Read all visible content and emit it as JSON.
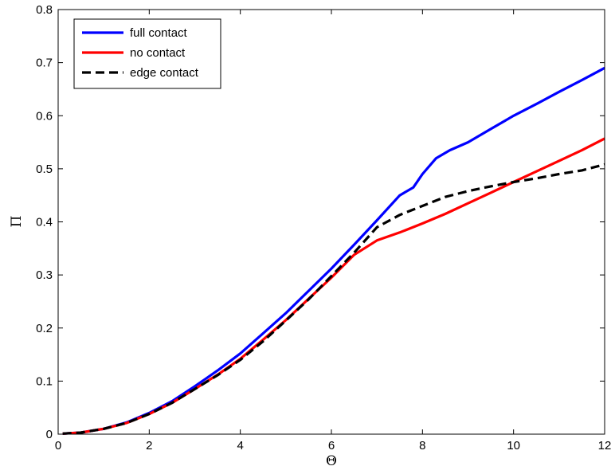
{
  "chart_data": {
    "type": "line",
    "title": "",
    "xlabel": "Θ",
    "ylabel": "Π",
    "xlim": [
      0,
      12
    ],
    "ylim": [
      0,
      0.8
    ],
    "xticks": [
      0,
      2,
      4,
      6,
      8,
      10,
      12
    ],
    "yticks": [
      0,
      0.1,
      0.2,
      0.3,
      0.4,
      0.5,
      0.6,
      0.7,
      0.8
    ],
    "grid": false,
    "legend_position": "top-left",
    "series": [
      {
        "name": "full contact",
        "color": "#0000ff",
        "dash": "solid",
        "x": [
          0.1,
          0.5,
          1.0,
          1.5,
          2.0,
          2.5,
          3.0,
          3.5,
          4.0,
          4.5,
          5.0,
          5.5,
          6.0,
          6.5,
          7.0,
          7.5,
          7.8,
          8.0,
          8.3,
          8.6,
          9.0,
          9.5,
          10.0,
          10.5,
          11.0,
          11.5,
          12.0
        ],
        "y": [
          0.001,
          0.003,
          0.01,
          0.022,
          0.04,
          0.062,
          0.09,
          0.12,
          0.152,
          0.19,
          0.228,
          0.27,
          0.312,
          0.357,
          0.403,
          0.45,
          0.465,
          0.49,
          0.52,
          0.535,
          0.55,
          0.575,
          0.6,
          0.622,
          0.645,
          0.667,
          0.69
        ]
      },
      {
        "name": "no contact",
        "color": "#ff0000",
        "dash": "solid",
        "x": [
          0.1,
          0.5,
          1.0,
          1.5,
          2.0,
          2.5,
          3.0,
          3.5,
          4.0,
          4.5,
          5.0,
          5.5,
          6.0,
          6.5,
          7.0,
          7.5,
          8.0,
          8.5,
          9.0,
          9.5,
          10.0,
          10.5,
          11.0,
          11.5,
          12.0
        ],
        "y": [
          0.001,
          0.003,
          0.01,
          0.021,
          0.038,
          0.059,
          0.085,
          0.112,
          0.142,
          0.178,
          0.215,
          0.255,
          0.295,
          0.338,
          0.365,
          0.38,
          0.397,
          0.415,
          0.435,
          0.455,
          0.475,
          0.495,
          0.515,
          0.535,
          0.557
        ]
      },
      {
        "name": "edge contact",
        "color": "#000000",
        "dash": "dashed",
        "x": [
          0.1,
          0.5,
          1.0,
          1.5,
          2.0,
          2.5,
          3.0,
          3.5,
          4.0,
          4.5,
          5.0,
          5.5,
          6.0,
          6.5,
          7.0,
          7.5,
          8.0,
          8.5,
          9.0,
          9.5,
          10.0,
          10.5,
          11.0,
          11.5,
          12.0
        ],
        "y": [
          0.001,
          0.003,
          0.01,
          0.021,
          0.038,
          0.059,
          0.085,
          0.111,
          0.14,
          0.175,
          0.214,
          0.254,
          0.298,
          0.342,
          0.39,
          0.413,
          0.43,
          0.447,
          0.458,
          0.467,
          0.475,
          0.482,
          0.49,
          0.497,
          0.508
        ]
      }
    ]
  }
}
